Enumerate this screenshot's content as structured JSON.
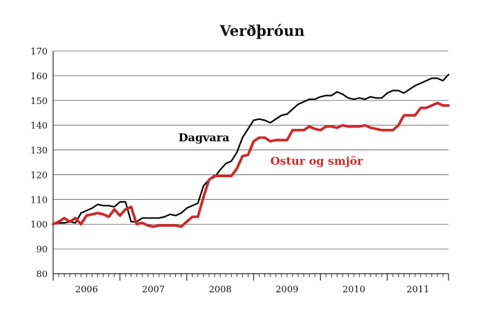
{
  "chart_data": {
    "type": "line",
    "title": "Verðþróun",
    "xlabel": "",
    "ylabel": "",
    "ylim": [
      80,
      170
    ],
    "yticks": [
      80,
      90,
      100,
      110,
      120,
      130,
      140,
      150,
      160,
      170
    ],
    "x_start_year": 2006,
    "months": 72,
    "year_labels": [
      "2006",
      "2007",
      "2008",
      "2009",
      "2010",
      "2011"
    ],
    "grid": "horizontal",
    "legend": "inline labels",
    "series": [
      {
        "name": "Dagvara",
        "color": "#000000",
        "values": [
          100,
          100.5,
          100.5,
          101,
          100.5,
          104.5,
          105.5,
          106.5,
          108,
          107.5,
          107.5,
          107,
          109,
          109,
          101,
          101,
          102.5,
          102.5,
          102.5,
          102.5,
          103,
          104,
          103.5,
          104.5,
          106.5,
          107.5,
          108.5,
          115.5,
          118,
          119,
          122,
          124.5,
          125.5,
          129,
          135,
          138.5,
          142,
          142.5,
          142,
          141,
          142.5,
          144,
          144.5,
          146.5,
          148.5,
          149.5,
          150.5,
          150.5,
          151.5,
          152,
          152,
          153.5,
          152.5,
          151,
          150.5,
          151,
          150.5,
          151.5,
          151,
          151,
          153,
          154,
          154,
          153,
          154.5,
          156,
          157,
          158,
          159,
          159,
          158,
          160.5
        ]
      },
      {
        "name": "Ostur og smjör",
        "color": "#cc2a2a",
        "values": [
          100,
          101,
          102.5,
          101,
          102.5,
          100,
          103.5,
          104,
          104.5,
          104,
          103,
          106,
          103.5,
          106,
          107,
          100,
          100.5,
          99.5,
          99,
          99.5,
          99.5,
          99.5,
          99.5,
          99,
          101,
          103,
          103,
          111,
          118,
          119.5,
          119.5,
          119.5,
          119.5,
          122.5,
          127.5,
          128,
          133.5,
          135,
          135,
          133.5,
          134,
          134,
          134,
          138,
          138,
          138,
          139.5,
          138.5,
          138,
          139.5,
          139.5,
          139,
          140,
          139.5,
          139.5,
          139.5,
          140,
          139,
          138.5,
          138,
          138,
          138,
          140,
          144,
          144,
          144,
          147,
          147,
          148,
          149,
          148,
          148
        ]
      }
    ],
    "annotations": [
      {
        "text": "Dagvara",
        "x_month": 22.5,
        "y": 133.5,
        "color": "#000000"
      },
      {
        "text": "Ostur og smjör",
        "x_month": 39,
        "y": 124,
        "color": "#cc2a2a"
      }
    ]
  }
}
